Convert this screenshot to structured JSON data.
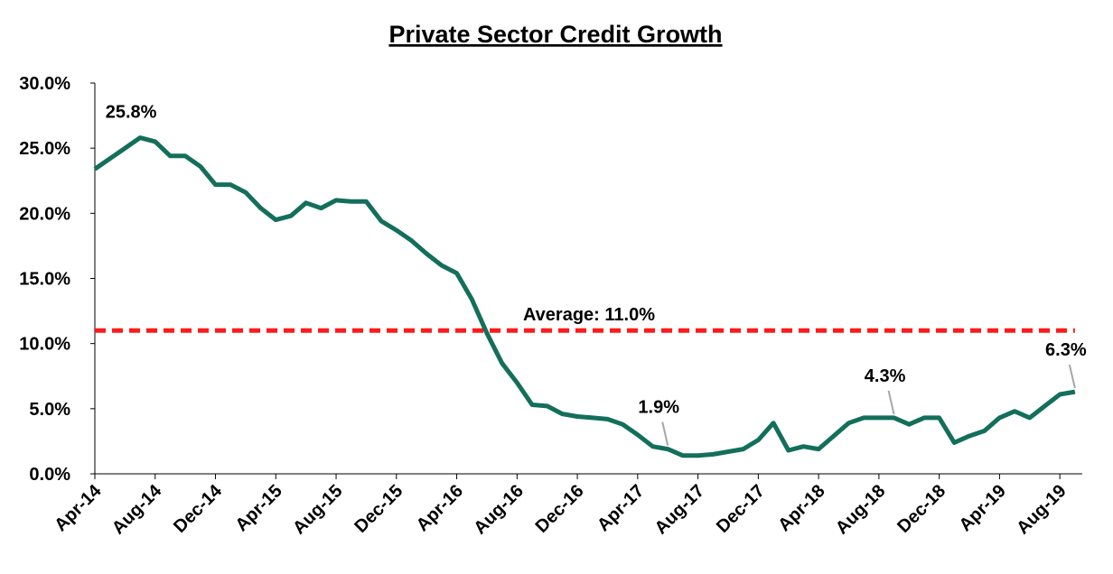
{
  "chart_data": {
    "type": "line",
    "title": "Private Sector Credit Growth",
    "categories": [
      "Apr-14",
      null,
      null,
      null,
      "Aug-14",
      null,
      null,
      null,
      "Dec-14",
      null,
      null,
      null,
      "Apr-15",
      null,
      null,
      null,
      "Aug-15",
      null,
      null,
      null,
      "Dec-15",
      null,
      null,
      null,
      "Apr-16",
      null,
      null,
      null,
      "Aug-16",
      null,
      null,
      null,
      "Dec-16",
      null,
      null,
      null,
      "Apr-17",
      null,
      null,
      null,
      "Aug-17",
      null,
      null,
      null,
      "Dec-17",
      null,
      null,
      null,
      "Apr-18",
      null,
      null,
      null,
      "Aug-18",
      null,
      null,
      null,
      "Dec-18",
      null,
      null,
      null,
      "Apr-19",
      null,
      null,
      null,
      "Aug-19",
      null
    ],
    "series": [
      {
        "color": "#136f5b",
        "values": [
          23.4,
          24.2,
          25.0,
          25.8,
          25.5,
          24.4,
          24.4,
          23.6,
          22.2,
          22.2,
          21.6,
          20.4,
          19.5,
          19.8,
          20.8,
          20.4,
          21.0,
          20.9,
          20.9,
          19.4,
          18.7,
          17.9,
          16.9,
          16.0,
          15.4,
          13.4,
          10.8,
          8.5,
          7.0,
          5.3,
          5.2,
          4.6,
          4.4,
          4.3,
          4.2,
          3.8,
          3.0,
          2.1,
          1.9,
          1.4,
          1.4,
          1.5,
          1.7,
          1.9,
          2.6,
          3.9,
          1.8,
          2.1,
          1.9,
          2.9,
          3.9,
          4.3,
          4.3,
          4.3,
          3.8,
          4.3,
          4.3,
          2.4,
          2.9,
          3.3,
          4.3,
          4.8,
          4.3,
          5.2,
          6.1,
          6.3
        ],
        "value_labels": [
          null,
          null,
          null,
          "25.8%",
          null,
          null,
          null,
          null,
          null,
          null,
          null,
          null,
          null,
          null,
          null,
          null,
          null,
          null,
          null,
          null,
          null,
          null,
          null,
          null,
          null,
          null,
          null,
          null,
          null,
          null,
          null,
          null,
          null,
          null,
          null,
          null,
          null,
          null,
          "1.9%",
          null,
          null,
          null,
          null,
          null,
          null,
          null,
          null,
          null,
          null,
          null,
          null,
          null,
          null,
          "4.3%",
          null,
          null,
          null,
          null,
          null,
          null,
          null,
          null,
          null,
          null,
          null,
          "6.3%"
        ]
      }
    ],
    "reference_line": {
      "value": 11.0,
      "label": "Average: 11.0%",
      "color": "#ff1a1a"
    },
    "ylim": [
      0,
      30
    ],
    "yticks": [
      {
        "value": 0,
        "label": "0.0%"
      },
      {
        "value": 5,
        "label": "5.0%"
      },
      {
        "value": 10,
        "label": "10.0%"
      },
      {
        "value": 15,
        "label": "15.0%"
      },
      {
        "value": 20,
        "label": "20.0%"
      },
      {
        "value": 25,
        "label": "25.0%"
      },
      {
        "value": 30,
        "label": "30.0%"
      }
    ],
    "grid": false
  }
}
